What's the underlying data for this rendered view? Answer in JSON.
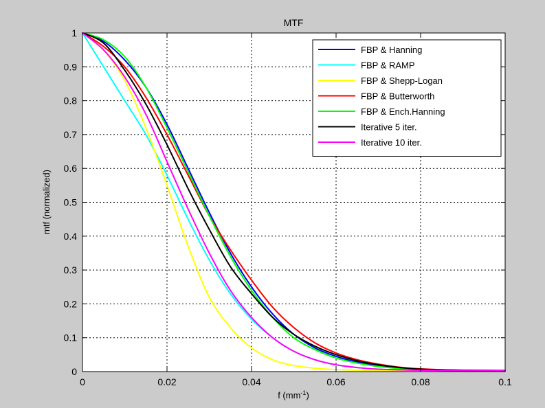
{
  "chart_data": {
    "type": "line",
    "title": "MTF",
    "xlabel_main": "f (mm",
    "xlabel_sup": "-1",
    "xlabel_close": ")",
    "ylabel": "mtf (normalized)",
    "xlim": [
      0,
      0.1
    ],
    "ylim": [
      0,
      1
    ],
    "xticks": [
      0,
      0.02,
      0.04,
      0.06,
      0.08,
      0.1
    ],
    "xtick_labels": [
      "0",
      "0.02",
      "0.04",
      "0.06",
      "0.08",
      "0.1"
    ],
    "yticks": [
      0,
      0.1,
      0.2,
      0.3,
      0.4,
      0.5,
      0.6,
      0.7,
      0.8,
      0.9,
      1
    ],
    "ytick_labels": [
      "0",
      "0.1",
      "0.2",
      "0.3",
      "0.4",
      "0.5",
      "0.6",
      "0.7",
      "0.8",
      "0.9",
      "1"
    ],
    "grid": true,
    "legend_position": "top-right",
    "series": [
      {
        "name": "FBP & Hanning",
        "color": "#0000ff",
        "x": [
          0,
          0.005,
          0.01,
          0.015,
          0.02,
          0.025,
          0.03,
          0.035,
          0.04,
          0.045,
          0.05,
          0.055,
          0.06,
          0.065,
          0.07,
          0.075,
          0.08,
          0.09,
          0.1
        ],
        "y": [
          1.0,
          0.975,
          0.92,
          0.84,
          0.73,
          0.6,
          0.47,
          0.35,
          0.25,
          0.17,
          0.11,
          0.07,
          0.045,
          0.028,
          0.017,
          0.01,
          0.006,
          0.003,
          0.002
        ]
      },
      {
        "name": "FBP & RAMP",
        "color": "#00ffff",
        "x": [
          0,
          0.005,
          0.01,
          0.015,
          0.02,
          0.025,
          0.03,
          0.035,
          0.04,
          0.045,
          0.05,
          0.055,
          0.06,
          0.065,
          0.07,
          0.08,
          0.1
        ],
        "y": [
          1.0,
          0.9,
          0.8,
          0.7,
          0.58,
          0.45,
          0.33,
          0.23,
          0.155,
          0.1,
          0.06,
          0.035,
          0.02,
          0.012,
          0.007,
          0.004,
          0.002
        ]
      },
      {
        "name": "FBP & Shepp-Logan",
        "color": "#ffff00",
        "x": [
          0,
          0.005,
          0.01,
          0.015,
          0.02,
          0.025,
          0.03,
          0.035,
          0.04,
          0.045,
          0.05,
          0.055,
          0.06,
          0.065,
          0.07,
          0.08,
          0.1
        ],
        "y": [
          1.0,
          0.95,
          0.86,
          0.72,
          0.55,
          0.37,
          0.22,
          0.13,
          0.07,
          0.035,
          0.018,
          0.01,
          0.006,
          0.004,
          0.003,
          0.002,
          0.002
        ]
      },
      {
        "name": "FBP & Butterworth",
        "color": "#ff0000",
        "x": [
          0,
          0.005,
          0.01,
          0.015,
          0.02,
          0.025,
          0.03,
          0.035,
          0.04,
          0.045,
          0.05,
          0.055,
          0.06,
          0.065,
          0.07,
          0.075,
          0.08,
          0.09,
          0.1
        ],
        "y": [
          1.0,
          0.96,
          0.9,
          0.81,
          0.7,
          0.58,
          0.46,
          0.36,
          0.27,
          0.19,
          0.13,
          0.085,
          0.055,
          0.035,
          0.022,
          0.013,
          0.008,
          0.004,
          0.003
        ]
      },
      {
        "name": "FBP & Ench.Hanning",
        "color": "#00ff00",
        "x": [
          0,
          0.005,
          0.01,
          0.015,
          0.02,
          0.025,
          0.03,
          0.035,
          0.04,
          0.045,
          0.05,
          0.055,
          0.06,
          0.065,
          0.07,
          0.075,
          0.08,
          0.09,
          0.1
        ],
        "y": [
          1.0,
          0.98,
          0.93,
          0.84,
          0.72,
          0.59,
          0.46,
          0.34,
          0.24,
          0.16,
          0.1,
          0.065,
          0.04,
          0.025,
          0.015,
          0.009,
          0.005,
          0.003,
          0.002
        ]
      },
      {
        "name": "Iterative 5 iter.",
        "color": "#000000",
        "x": [
          0,
          0.005,
          0.01,
          0.015,
          0.02,
          0.025,
          0.03,
          0.035,
          0.04,
          0.045,
          0.05,
          0.055,
          0.06,
          0.065,
          0.07,
          0.075,
          0.08,
          0.09,
          0.1
        ],
        "y": [
          1.0,
          0.97,
          0.89,
          0.79,
          0.67,
          0.54,
          0.42,
          0.31,
          0.23,
          0.16,
          0.11,
          0.075,
          0.05,
          0.032,
          0.02,
          0.012,
          0.007,
          0.004,
          0.003
        ]
      },
      {
        "name": "Iterative 10 iter.",
        "color": "#ff00ff",
        "x": [
          0,
          0.005,
          0.01,
          0.015,
          0.02,
          0.025,
          0.03,
          0.035,
          0.04,
          0.045,
          0.05,
          0.055,
          0.06,
          0.065,
          0.07,
          0.08,
          0.1
        ],
        "y": [
          1.0,
          0.95,
          0.87,
          0.76,
          0.62,
          0.48,
          0.35,
          0.24,
          0.16,
          0.1,
          0.06,
          0.035,
          0.02,
          0.012,
          0.007,
          0.004,
          0.002
        ]
      }
    ]
  }
}
